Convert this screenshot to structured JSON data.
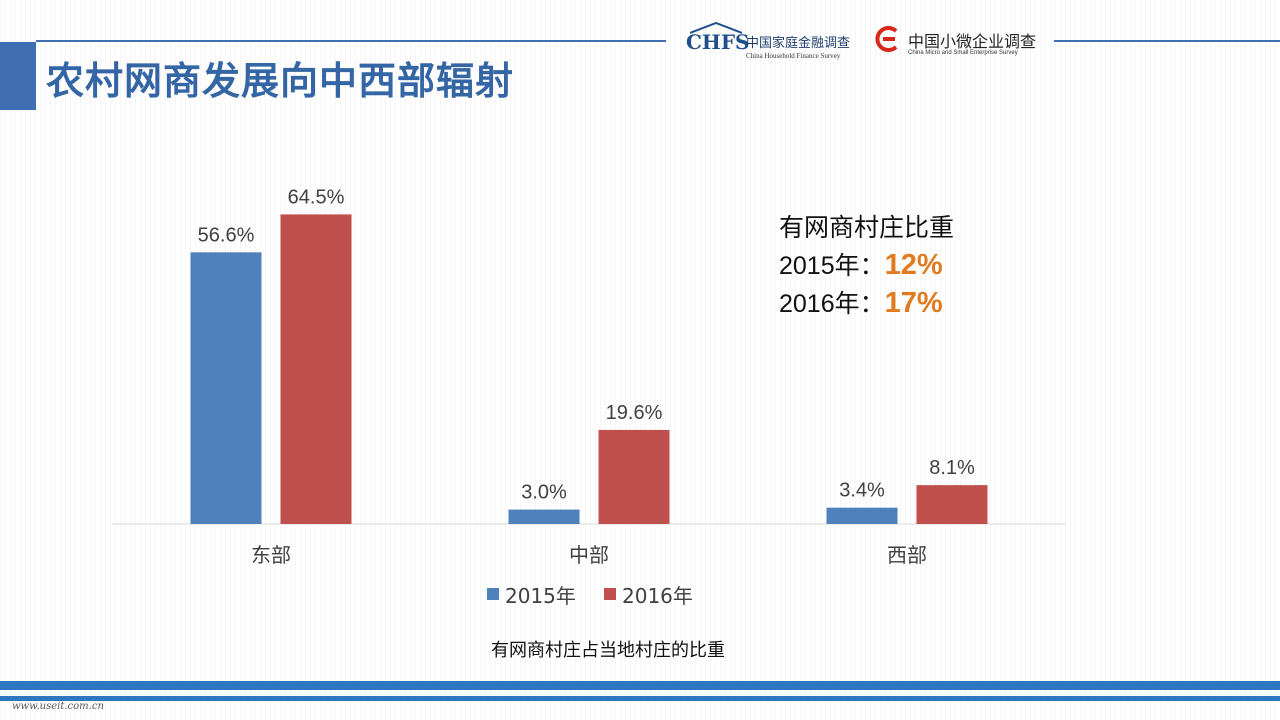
{
  "header": {
    "title": "农村网商发展向中西部辐射",
    "logo1": {
      "mark": "CHFS",
      "cn": "中国家庭金融调查",
      "en": "China Household Finance Survey"
    },
    "logo2": {
      "cn": "中国小微企业调查",
      "en": "China Micro and Small Enterprise Survey"
    }
  },
  "colors": {
    "accent": "#3f6fb0",
    "series_2015": "#4f81bd",
    "series_2016": "#c0504d",
    "highlight": "#e07b1f"
  },
  "chart_data": {
    "type": "bar",
    "categories": [
      "东部",
      "中部",
      "西部"
    ],
    "series": [
      {
        "name": "2015年",
        "values": [
          56.6,
          3.0,
          3.4
        ],
        "labels": [
          "56.6%",
          "3.0%",
          "3.4%"
        ],
        "color": "#4f81bd"
      },
      {
        "name": "2016年",
        "values": [
          64.5,
          19.6,
          8.1
        ],
        "labels": [
          "64.5%",
          "19.6%",
          "8.1%"
        ],
        "color": "#c0504d"
      }
    ],
    "ylim": [
      0,
      70
    ],
    "legend": "bottom",
    "grid": false
  },
  "info": {
    "heading": "有网商村庄比重",
    "rows": [
      {
        "year": "2015年：",
        "value": "12%"
      },
      {
        "year": "2016年：",
        "value": "17%"
      }
    ]
  },
  "caption": "有网商村庄占当地村庄的比重",
  "footer": {
    "text": "www.useit.com.cn"
  }
}
